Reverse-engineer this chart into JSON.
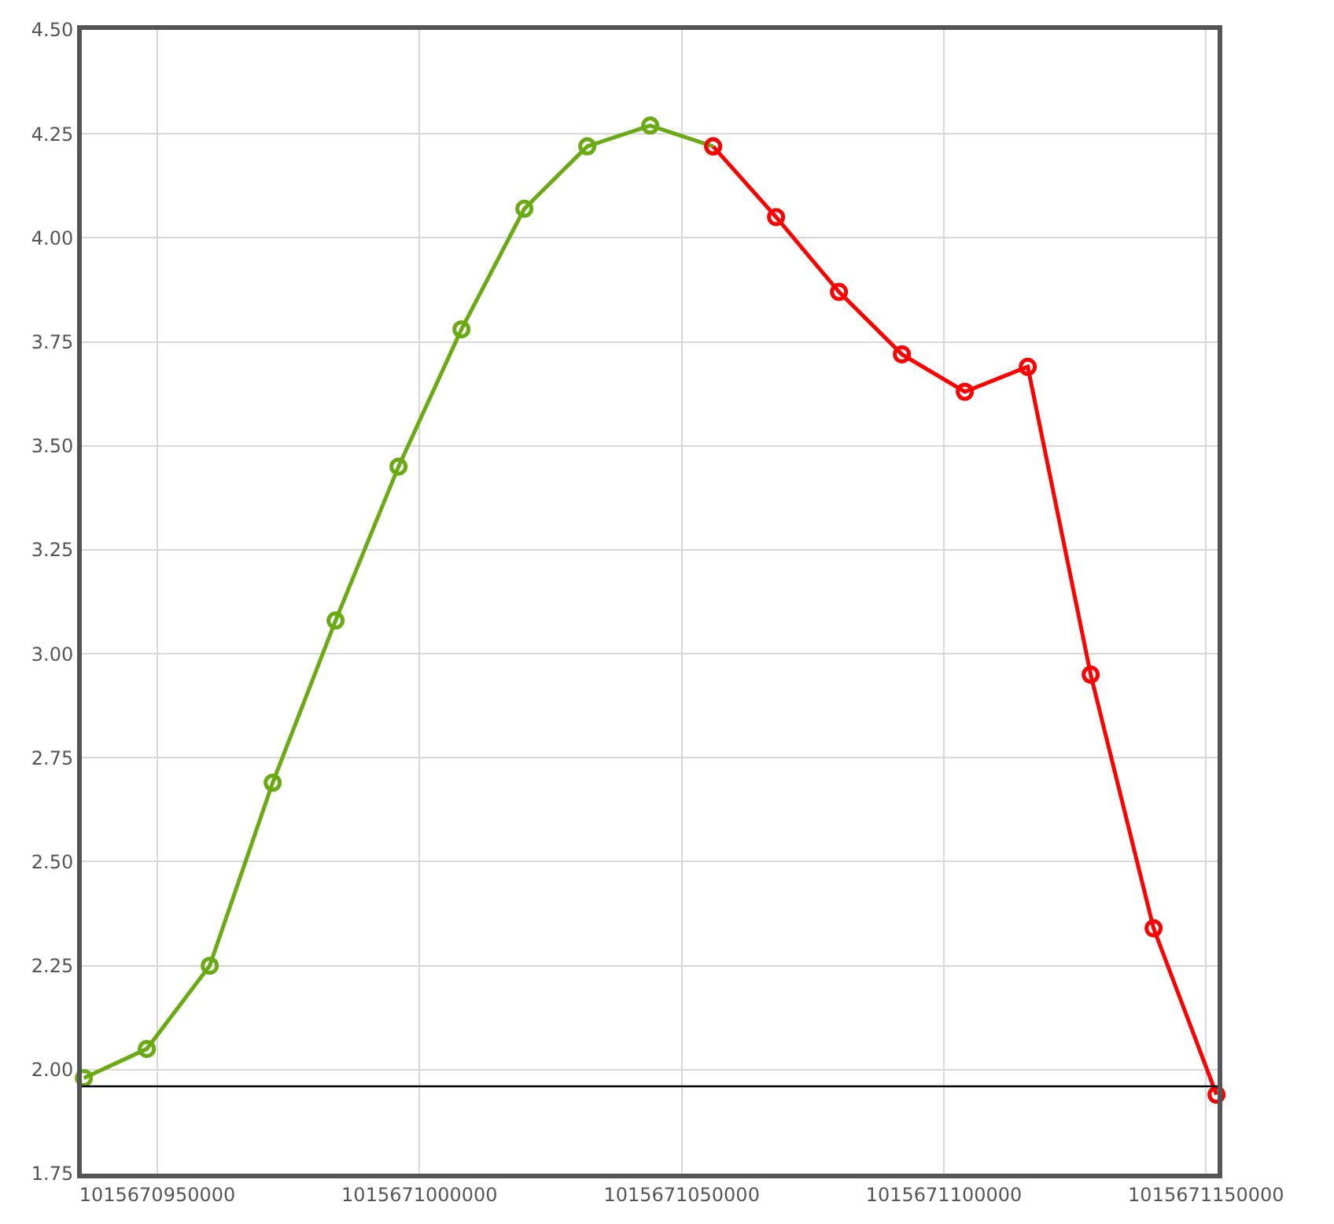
{
  "chart_data": {
    "type": "line",
    "xlim": [
      1015670935600,
      1015671152200
    ],
    "xticks": [
      1015670950000,
      1015671000000,
      1015671050000,
      1015671100000,
      1015671150000
    ],
    "ylim": [
      1.75,
      4.5
    ],
    "yticks": [
      1.75,
      {
        "value": 2,
        "label": "2.00"
      },
      2.25,
      {
        "value": 2.5,
        "label": "2.50"
      },
      2.75,
      {
        "value": 3,
        "label": "3.00"
      },
      3.25,
      {
        "value": 3.5,
        "label": "3.50"
      },
      3.75,
      {
        "value": 4,
        "label": "4.00"
      },
      4.25,
      {
        "value": 4.5,
        "label": "4.50"
      }
    ],
    "grid": true,
    "marker": "circle",
    "line_style": "solid",
    "series": [
      {
        "color": "#6aaa12",
        "x": [
          1015670936000,
          1015670948000,
          1015670960000,
          1015670972000,
          1015670984000,
          1015670996000,
          1015671008000,
          1015671020000,
          1015671032000,
          1015671044000,
          1015671056000
        ],
        "values": [
          1.98,
          2.05,
          2.25,
          2.69,
          3.08,
          3.45,
          3.78,
          4.07,
          4.22,
          4.27,
          4.22
        ]
      },
      {
        "color": "#ff0000",
        "x": [
          1015671056000,
          1015671068000,
          1015671080000,
          1015671092000,
          1015671104000,
          1015671116000,
          1015671128000,
          1015671140000,
          1015671152000
        ],
        "values": [
          4.22,
          4.05,
          3.87,
          3.72,
          3.63,
          3.69,
          2.95,
          2.34,
          1.94
        ]
      }
    ],
    "ref_lines": [
      {
        "axis": "y",
        "value": 1.96,
        "color": "#000000",
        "line_style": "solid"
      }
    ]
  }
}
